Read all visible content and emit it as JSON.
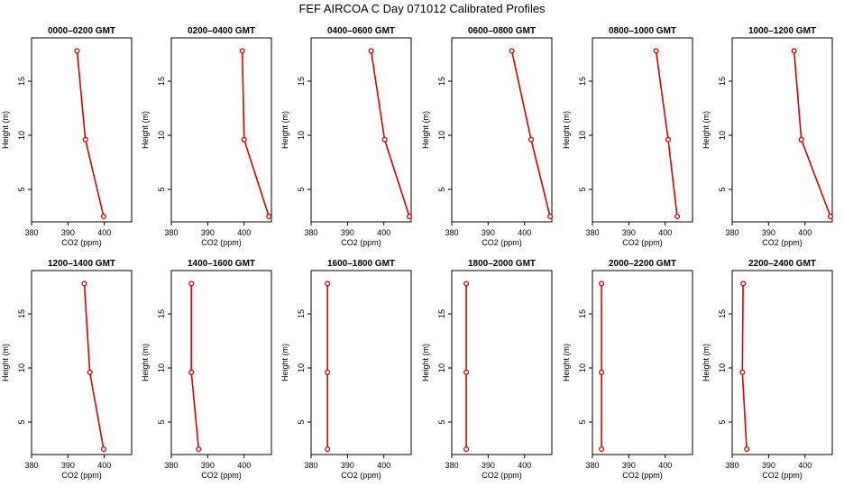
{
  "title": "FEF AIRCOA C  Day 071012  Calibrated Profiles",
  "colors": {
    "line": "#dd0000",
    "axis": "#000000",
    "background": "#ffffff"
  },
  "chart_data": [
    {
      "type": "line",
      "title": "0000–0200 GMT",
      "xlabel": "CO2 (ppm)",
      "ylabel": "Height (m)",
      "xlim": [
        380,
        407.5
      ],
      "ylim": [
        2,
        19
      ],
      "xticks": [
        380,
        390,
        400
      ],
      "yticks": [
        5,
        10,
        15
      ],
      "x": [
        392.5,
        394.8,
        399.8
      ],
      "y": [
        17.8,
        9.6,
        2.5
      ]
    },
    {
      "type": "line",
      "title": "0200–0400 GMT",
      "xlabel": "CO2 (ppm)",
      "ylabel": "Height (m)",
      "xlim": [
        380,
        407.5
      ],
      "ylim": [
        2,
        19
      ],
      "xticks": [
        380,
        390,
        400
      ],
      "yticks": [
        5,
        10,
        15
      ],
      "x": [
        399.5,
        400.0,
        406.8
      ],
      "y": [
        17.8,
        9.6,
        2.5
      ]
    },
    {
      "type": "line",
      "title": "0400–0600 GMT",
      "xlabel": "CO2 (ppm)",
      "ylabel": "Height (m)",
      "xlim": [
        380,
        407.5
      ],
      "ylim": [
        2,
        19
      ],
      "xticks": [
        380,
        390,
        400
      ],
      "yticks": [
        5,
        10,
        15
      ],
      "x": [
        396.5,
        400.2,
        407.0
      ],
      "y": [
        17.8,
        9.6,
        2.5
      ]
    },
    {
      "type": "line",
      "title": "0600–0800 GMT",
      "xlabel": "CO2 (ppm)",
      "ylabel": "Height (m)",
      "xlim": [
        380,
        407.5
      ],
      "ylim": [
        2,
        19
      ],
      "xticks": [
        380,
        390,
        400
      ],
      "yticks": [
        5,
        10,
        15
      ],
      "x": [
        396.5,
        401.8,
        407.0
      ],
      "y": [
        17.8,
        9.6,
        2.5
      ]
    },
    {
      "type": "line",
      "title": "0800–1000 GMT",
      "xlabel": "CO2 (ppm)",
      "ylabel": "Height (m)",
      "xlim": [
        380,
        407.5
      ],
      "ylim": [
        2,
        19
      ],
      "xticks": [
        380,
        390,
        400
      ],
      "yticks": [
        5,
        10,
        15
      ],
      "x": [
        397.5,
        400.8,
        403.3
      ],
      "y": [
        17.8,
        9.6,
        2.5
      ]
    },
    {
      "type": "line",
      "title": "1000–1200 GMT",
      "xlabel": "CO2 (ppm)",
      "ylabel": "Height (m)",
      "xlim": [
        380,
        407.5
      ],
      "ylim": [
        2,
        19
      ],
      "xticks": [
        380,
        390,
        400
      ],
      "yticks": [
        5,
        10,
        15
      ],
      "x": [
        397.0,
        399.0,
        407.0
      ],
      "y": [
        17.8,
        9.6,
        2.5
      ]
    },
    {
      "type": "line",
      "title": "1200–1400 GMT",
      "xlabel": "CO2 (ppm)",
      "ylabel": "Height (m)",
      "xlim": [
        380,
        407.5
      ],
      "ylim": [
        2,
        19
      ],
      "xticks": [
        380,
        390,
        400
      ],
      "yticks": [
        5,
        10,
        15
      ],
      "x": [
        394.5,
        396.0,
        399.8
      ],
      "y": [
        17.8,
        9.6,
        2.5
      ]
    },
    {
      "type": "line",
      "title": "1400–1600 GMT",
      "xlabel": "CO2 (ppm)",
      "ylabel": "Height (m)",
      "xlim": [
        380,
        407.5
      ],
      "ylim": [
        2,
        19
      ],
      "xticks": [
        380,
        390,
        400
      ],
      "yticks": [
        5,
        10,
        15
      ],
      "x": [
        385.5,
        385.5,
        387.5
      ],
      "y": [
        17.8,
        9.6,
        2.5
      ]
    },
    {
      "type": "line",
      "title": "1600–1800 GMT",
      "xlabel": "CO2 (ppm)",
      "ylabel": "Height (m)",
      "xlim": [
        380,
        407.5
      ],
      "ylim": [
        2,
        19
      ],
      "xticks": [
        380,
        390,
        400
      ],
      "yticks": [
        5,
        10,
        15
      ],
      "x": [
        384.5,
        384.5,
        384.5
      ],
      "y": [
        17.8,
        9.6,
        2.5
      ]
    },
    {
      "type": "line",
      "title": "1800–2000 GMT",
      "xlabel": "CO2 (ppm)",
      "ylabel": "Height (m)",
      "xlim": [
        380,
        407.5
      ],
      "ylim": [
        2,
        19
      ],
      "xticks": [
        380,
        390,
        400
      ],
      "yticks": [
        5,
        10,
        15
      ],
      "x": [
        384.0,
        384.0,
        384.0
      ],
      "y": [
        17.8,
        9.6,
        2.5
      ]
    },
    {
      "type": "line",
      "title": "2000–2200 GMT",
      "xlabel": "CO2 (ppm)",
      "ylabel": "Height (m)",
      "xlim": [
        380,
        407.5
      ],
      "ylim": [
        2,
        19
      ],
      "xticks": [
        380,
        390,
        400
      ],
      "yticks": [
        5,
        10,
        15
      ],
      "x": [
        382.5,
        382.5,
        382.5
      ],
      "y": [
        17.8,
        9.6,
        2.5
      ]
    },
    {
      "type": "line",
      "title": "2200–2400 GMT",
      "xlabel": "CO2 (ppm)",
      "ylabel": "Height (m)",
      "xlim": [
        380,
        407.5
      ],
      "ylim": [
        2,
        19
      ],
      "xticks": [
        380,
        390,
        400
      ],
      "yticks": [
        5,
        10,
        15
      ],
      "x": [
        383.0,
        382.8,
        384.0
      ],
      "y": [
        17.8,
        9.6,
        2.5
      ]
    }
  ]
}
